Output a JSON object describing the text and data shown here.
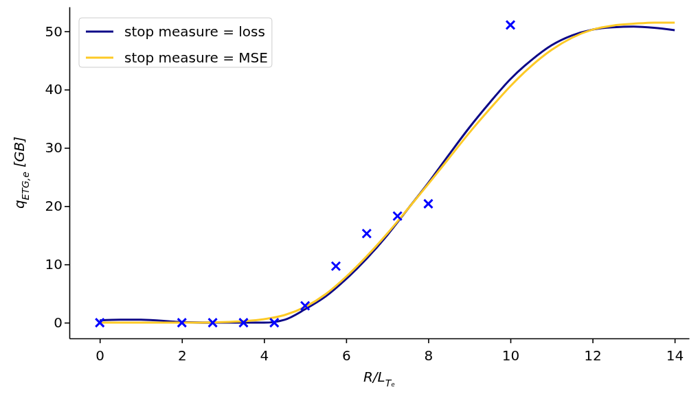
{
  "chart_data": {
    "type": "line",
    "xlabel": "R/L$_{Tₑ}$",
    "ylabel": "q$_{ETG,e}$ [GB]",
    "xlim": [
      -0.74,
      14.35
    ],
    "ylim": [
      -2.7,
      54.2
    ],
    "xticks": [
      0,
      2,
      4,
      6,
      8,
      10,
      12,
      14
    ],
    "yticks": [
      0,
      10,
      20,
      30,
      40,
      50
    ],
    "grid": false,
    "legend": "top left",
    "line_style": "solid",
    "series": [
      {
        "name": "stop measure = loss",
        "color": "#0d0887",
        "x": [
          0,
          0.5,
          1,
          2,
          3,
          4,
          4.5,
          5,
          5.5,
          6,
          6.5,
          7,
          7.5,
          8,
          8.5,
          9,
          9.5,
          10,
          10.5,
          11,
          11.5,
          12,
          12.5,
          13,
          13.5,
          14
        ],
        "values": [
          0.4,
          0.5,
          0.5,
          0.1,
          0,
          0,
          0.5,
          2.3,
          4.5,
          7.5,
          11,
          15,
          19.5,
          24,
          28.8,
          33.5,
          37.8,
          41.8,
          45,
          47.6,
          49.3,
          50.3,
          50.7,
          50.8,
          50.6,
          50.2
        ]
      },
      {
        "name": "stop measure = MSE",
        "color": "#fdca26",
        "x": [
          0,
          1,
          2,
          3,
          4,
          4.5,
          5,
          5.5,
          6,
          6.5,
          7,
          7.5,
          8,
          8.5,
          9,
          9.5,
          10,
          10.5,
          11,
          11.5,
          12,
          12.5,
          13,
          13.5,
          14
        ],
        "values": [
          0,
          0,
          0,
          0.1,
          0.6,
          1.3,
          2.7,
          4.9,
          7.9,
          11.4,
          15.3,
          19.5,
          23.8,
          28.2,
          32.6,
          36.7,
          40.6,
          44,
          46.8,
          48.9,
          50.3,
          51,
          51.3,
          51.5,
          51.5
        ]
      },
      {
        "type": "scatter",
        "marker": "cross",
        "color": "#0000ff",
        "x": [
          0,
          2,
          2.75,
          3.5,
          4.25,
          5,
          5.75,
          6.5,
          7.25,
          8,
          10
        ],
        "values": [
          0,
          0,
          0,
          0,
          0,
          2.9,
          9.7,
          15.3,
          18.3,
          20.4,
          51.1
        ]
      }
    ]
  }
}
